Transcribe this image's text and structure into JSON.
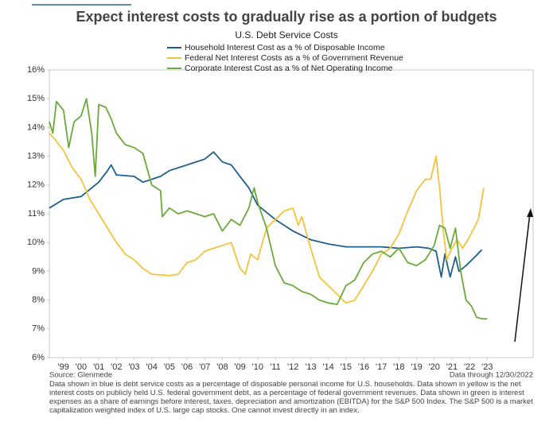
{
  "chart_data": {
    "type": "line",
    "title": "Expect interest costs to gradually rise as a portion of budgets",
    "subtitle": "U.S. Debt Service Costs",
    "source": "Source: Glenmede",
    "data_through": "Data through 12/30/2022",
    "note": "Data shown in blue is debt service costs as a percentage of disposable personal income for U.S. households. Data shown in yellow is the net interest costs on publicly held U.S. federal government debt, as a percentage of federal government revenues. Data shown in green is interest expenses as a share of earnings before interest, taxes, depreciation and amortization (EBITDA) for the S&P 500 Index. The S&P 500 is a market capitalization weighted index of U.S. large cap stocks. One cannot invest directly in an index.",
    "xlim": [
      1998.2,
      2025.6
    ],
    "xticks": [
      {
        "value": 1999,
        "label": "'99"
      },
      {
        "value": 2000,
        "label": "'00"
      },
      {
        "value": 2001,
        "label": "'01"
      },
      {
        "value": 2002,
        "label": "'02"
      },
      {
        "value": 2003,
        "label": "'03"
      },
      {
        "value": 2004,
        "label": "'04"
      },
      {
        "value": 2005,
        "label": "'05"
      },
      {
        "value": 2006,
        "label": "'06"
      },
      {
        "value": 2007,
        "label": "'07"
      },
      {
        "value": 2008,
        "label": "'08"
      },
      {
        "value": 2009,
        "label": "'09"
      },
      {
        "value": 2010,
        "label": "'10"
      },
      {
        "value": 2011,
        "label": "'11"
      },
      {
        "value": 2012,
        "label": "'12"
      },
      {
        "value": 2013,
        "label": "'13"
      },
      {
        "value": 2014,
        "label": "'14"
      },
      {
        "value": 2015,
        "label": "'15"
      },
      {
        "value": 2016,
        "label": "'16"
      },
      {
        "value": 2017,
        "label": "'17"
      },
      {
        "value": 2018,
        "label": "'18"
      },
      {
        "value": 2019,
        "label": "'19"
      },
      {
        "value": 2020,
        "label": "'20"
      },
      {
        "value": 2021,
        "label": "'21"
      },
      {
        "value": 2022,
        "label": "'22"
      },
      {
        "value": 2023,
        "label": "'23"
      }
    ],
    "ylim": [
      6,
      16
    ],
    "yticks": [
      {
        "value": 6,
        "label": "6%"
      },
      {
        "value": 7,
        "label": "7%"
      },
      {
        "value": 8,
        "label": "8%"
      },
      {
        "value": 9,
        "label": "9%"
      },
      {
        "value": 10,
        "label": "10%"
      },
      {
        "value": 11,
        "label": "11%"
      },
      {
        "value": 12,
        "label": "12%"
      },
      {
        "value": 13,
        "label": "13%"
      },
      {
        "value": 14,
        "label": "14%"
      },
      {
        "value": 15,
        "label": "15%"
      },
      {
        "value": 16,
        "label": "16%"
      }
    ],
    "series": [
      {
        "name": "Household Interest Cost as a % of Disposable Income",
        "color": "#1f5f8b",
        "x": [
          1998.2,
          1999,
          2000,
          2001,
          2001.5,
          2001.7,
          2002,
          2003,
          2003.5,
          2004,
          2004.5,
          2005,
          2006,
          2007,
          2007.5,
          2008,
          2008.5,
          2009,
          2009.5,
          2010,
          2011,
          2012,
          2013,
          2014,
          2015,
          2016,
          2017,
          2018,
          2019,
          2019.7,
          2020.1,
          2020.4,
          2020.6,
          2020.9,
          2021.2,
          2021.4,
          2021.8,
          2022.3,
          2022.7
        ],
        "values": [
          11.2,
          11.5,
          11.6,
          12.1,
          12.5,
          12.7,
          12.35,
          12.3,
          12.1,
          12.2,
          12.3,
          12.5,
          12.7,
          12.9,
          13.15,
          12.8,
          12.7,
          12.3,
          11.9,
          11.3,
          10.8,
          10.4,
          10.1,
          9.95,
          9.85,
          9.85,
          9.85,
          9.8,
          9.85,
          9.8,
          9.7,
          8.8,
          9.6,
          8.8,
          9.5,
          9.0,
          9.2,
          9.5,
          9.75
        ]
      },
      {
        "name": "Federal Net Interest Costs as a % of Government Revenue",
        "color": "#f5c23e",
        "x": [
          1998.2,
          1998.5,
          1999,
          1999.5,
          2000,
          2000.5,
          2001,
          2001.5,
          2002,
          2002.5,
          2003,
          2003.5,
          2004,
          2005,
          2005.5,
          2006,
          2006.5,
          2007,
          2007.5,
          2008,
          2008.5,
          2009,
          2009.3,
          2009.6,
          2010,
          2010.5,
          2011,
          2011.5,
          2012,
          2012.3,
          2012.5,
          2013,
          2013.5,
          2014,
          2014.5,
          2015,
          2015.5,
          2016,
          2016.5,
          2017,
          2017.5,
          2018,
          2018.5,
          2019,
          2019.5,
          2019.8,
          2020.1,
          2020.3,
          2020.5,
          2020.7,
          2021,
          2021.3,
          2021.6,
          2022,
          2022.5,
          2022.8
        ],
        "values": [
          13.8,
          13.6,
          13.2,
          12.6,
          12.2,
          11.5,
          11.0,
          10.5,
          10.0,
          9.6,
          9.4,
          9.1,
          8.9,
          8.85,
          8.9,
          9.3,
          9.4,
          9.7,
          9.8,
          9.9,
          10.0,
          9.1,
          8.9,
          9.6,
          9.4,
          10.5,
          10.8,
          11.1,
          11.2,
          10.6,
          10.9,
          9.8,
          8.8,
          8.5,
          8.2,
          7.9,
          8.0,
          8.5,
          9.0,
          9.6,
          9.8,
          10.3,
          11.1,
          11.8,
          12.2,
          12.2,
          13.0,
          11.9,
          10.5,
          9.4,
          9.8,
          10.1,
          9.8,
          10.2,
          10.8,
          11.9
        ]
      },
      {
        "name": "Corporate Interest Cost as a % of Net Operating Income",
        "color": "#6aaa3a",
        "x": [
          1998.2,
          1998.4,
          1998.6,
          1999,
          1999.3,
          1999.6,
          2000,
          2000.3,
          2000.6,
          2000.8,
          2001,
          2001.4,
          2001.7,
          2002,
          2002.5,
          2003,
          2003.5,
          2004,
          2004.5,
          2004.6,
          2005,
          2005.5,
          2006,
          2007,
          2007.5,
          2008,
          2008.5,
          2009,
          2009.5,
          2009.8,
          2010,
          2010.5,
          2011,
          2011.5,
          2012,
          2012.5,
          2013,
          2013.5,
          2014,
          2014.5,
          2015,
          2015.5,
          2016,
          2016.5,
          2017,
          2017.5,
          2018,
          2018.5,
          2019,
          2019.5,
          2020,
          2020.3,
          2020.6,
          2020.9,
          2021.2,
          2021.5,
          2021.8,
          2022.1,
          2022.4,
          2022.7,
          2023
        ],
        "values": [
          14.2,
          13.8,
          14.9,
          14.6,
          13.3,
          14.2,
          14.4,
          15.0,
          13.8,
          12.3,
          14.8,
          14.7,
          14.3,
          13.8,
          13.4,
          13.3,
          13.1,
          12.0,
          11.8,
          10.9,
          11.2,
          11.0,
          11.1,
          10.9,
          11.0,
          10.4,
          10.8,
          10.6,
          11.2,
          11.9,
          11.4,
          10.5,
          9.2,
          8.6,
          8.5,
          8.3,
          8.2,
          8.0,
          7.9,
          7.85,
          8.5,
          8.7,
          9.3,
          9.6,
          9.7,
          9.5,
          9.8,
          9.3,
          9.2,
          9.4,
          9.9,
          10.6,
          10.5,
          9.8,
          10.5,
          9.0,
          8.0,
          7.8,
          7.4,
          7.35,
          7.35
        ]
      }
    ]
  }
}
